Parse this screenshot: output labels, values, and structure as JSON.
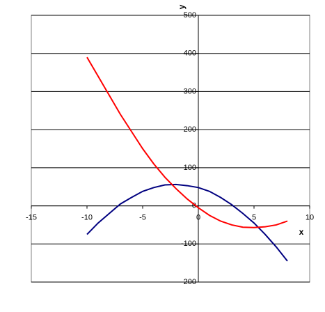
{
  "chart_data": {
    "type": "line",
    "x_label": "x",
    "y_label": "y",
    "x": [
      -10,
      -9,
      -8,
      -7,
      -6,
      -5,
      -4,
      -3,
      -2,
      -1,
      0,
      1,
      2,
      3,
      4,
      5,
      6,
      7,
      8
    ],
    "series": [
      {
        "color": "#000080",
        "values": [
          -75,
          -45,
          -20,
          5,
          22,
          38,
          48,
          55,
          56,
          53,
          48,
          38,
          22,
          3,
          -20,
          -45,
          -75,
          -108,
          -145
        ]
      },
      {
        "color": "#ff0000",
        "values": [
          390,
          340,
          290,
          240,
          195,
          150,
          110,
          75,
          45,
          18,
          -5,
          -25,
          -40,
          -50,
          -56,
          -57,
          -55,
          -50,
          -40
        ]
      }
    ],
    "xlim": [
      -15,
      10
    ],
    "xticks": [
      -15,
      -10,
      -5,
      0,
      5,
      10
    ],
    "ylim": [
      -200,
      500
    ],
    "yticks": [
      -200,
      -100,
      0,
      100,
      200,
      300,
      400,
      500
    ],
    "grid": true
  }
}
